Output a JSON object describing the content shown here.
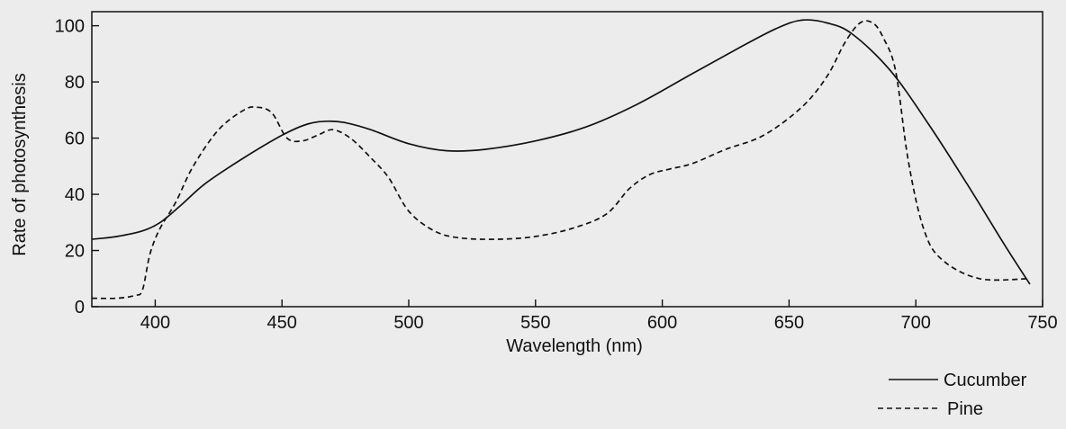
{
  "chart_data": {
    "type": "line",
    "title": "",
    "xlabel": "Wavelength (nm)",
    "ylabel": "Rate of photosynthesis",
    "xlim": [
      375,
      750
    ],
    "ylim": [
      0,
      105
    ],
    "x_ticks": [
      400,
      450,
      500,
      550,
      600,
      650,
      700,
      750
    ],
    "y_ticks": [
      0,
      20,
      40,
      60,
      80,
      100
    ],
    "grid": false,
    "legend_position": "bottom-right",
    "series": [
      {
        "name": "Cucumber",
        "style": "solid",
        "color": "#111111",
        "x": [
          375,
          385,
          395,
          402,
          410,
          420,
          435,
          450,
          460,
          468,
          475,
          485,
          500,
          515,
          530,
          550,
          570,
          590,
          610,
          630,
          645,
          655,
          665,
          675,
          690,
          705,
          720,
          735,
          745
        ],
        "y": [
          24,
          25,
          27,
          30,
          36,
          44,
          53,
          61,
          65,
          66,
          65.5,
          63,
          58,
          55.5,
          56,
          59,
          64,
          72,
          82,
          92,
          99,
          102,
          101,
          97,
          84,
          65,
          44,
          22,
          8
        ]
      },
      {
        "name": "Pine",
        "style": "dashed",
        "color": "#111111",
        "x": [
          375,
          385,
          392,
          395,
          398,
          402,
          408,
          415,
          425,
          435,
          440,
          446,
          452,
          458,
          464,
          470,
          477,
          485,
          492,
          500,
          510,
          520,
          535,
          550,
          565,
          578,
          587,
          595,
          603,
          612,
          625,
          640,
          655,
          665,
          672,
          678,
          683,
          687,
          692,
          697,
          703,
          710,
          725,
          745
        ],
        "y": [
          3,
          3,
          4,
          6,
          19,
          28,
          37,
          50,
          63,
          70,
          71,
          69,
          60,
          59,
          61,
          63,
          60,
          53,
          46,
          34,
          27,
          24.5,
          24,
          25,
          28,
          33,
          42,
          47,
          49,
          51,
          56,
          61,
          71,
          82,
          94,
          101,
          101,
          96,
          84,
          52,
          28,
          17,
          10,
          10
        ]
      }
    ]
  }
}
